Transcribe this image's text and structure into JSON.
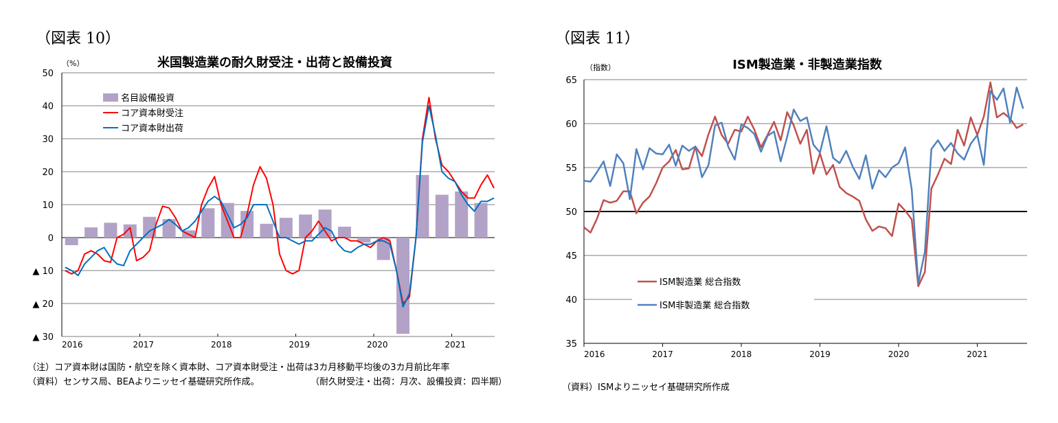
{
  "figures": {
    "left_label": "（図表 10）",
    "right_label": "（図表 11）"
  },
  "notes": {
    "left_note": "（注）コア資本財は国防・航空を除く資本財、コア資本財受注・出荷は3カ月移動平均後の3カ月前比年率",
    "left_source": "（資料）センサス局、BEAよりニッセイ基礎研究所作成。",
    "left_frequency": "（耐久財受注・出荷：月次、設備投資：四半期）",
    "right_source": "（資料）ISMよりニッセイ基礎研究所作成"
  },
  "colors": {
    "bar": "#b3a2c7",
    "orders": "#ff0000",
    "shipments": "#0070c0",
    "ism_manufacturing": "#c0504d",
    "ism_nonmanufacturing": "#4f81bd",
    "grid": "#7f7f7f"
  },
  "chart_data": [
    {
      "type": "bar+line",
      "title": "米国製造業の耐久財受注・出荷と設備投資",
      "unit": "（%）",
      "ylim": [
        -30,
        50
      ],
      "yticks": [
        {
          "value": 50,
          "label": "50"
        },
        {
          "value": 40,
          "label": "40"
        },
        {
          "value": 30,
          "label": "30"
        },
        {
          "value": 20,
          "label": "20"
        },
        {
          "value": 10,
          "label": "10"
        },
        {
          "value": 0,
          "label": "0"
        },
        {
          "value": -10,
          "label": "▲ 10"
        },
        {
          "value": -20,
          "label": "▲ 20"
        },
        {
          "value": -30,
          "label": "▲ 30"
        }
      ],
      "xticks": [
        "2016",
        "2017",
        "2018",
        "2019",
        "2020",
        "2021"
      ],
      "grid": true,
      "legend_position": "top-left",
      "series": [
        {
          "name": "名目設備投資",
          "kind": "bar",
          "frequency": "quarterly",
          "x": [
            "2016Q1",
            "2016Q2",
            "2016Q3",
            "2016Q4",
            "2017Q1",
            "2017Q2",
            "2017Q3",
            "2017Q4",
            "2018Q1",
            "2018Q2",
            "2018Q3",
            "2018Q4",
            "2019Q1",
            "2019Q2",
            "2019Q3",
            "2019Q4",
            "2020Q1",
            "2020Q2",
            "2020Q3",
            "2020Q4",
            "2021Q1",
            "2021Q2"
          ],
          "values": [
            -2.3,
            3.1,
            4.5,
            4.0,
            6.3,
            5.6,
            2.2,
            8.9,
            10.5,
            8.1,
            4.2,
            6.0,
            7.0,
            8.5,
            3.3,
            -1.5,
            -6.8,
            -29.2,
            19.0,
            13.0,
            14.0,
            10.5
          ]
        },
        {
          "name": "コア資本財受注",
          "kind": "line",
          "frequency": "monthly",
          "start": "2016-01",
          "values": [
            -10,
            -11,
            -10,
            -5,
            -4,
            -5,
            -7,
            -7.5,
            0,
            1,
            3,
            -7,
            -6,
            -4,
            4,
            9.5,
            9,
            6,
            2,
            1,
            0,
            10,
            15,
            18.5,
            10,
            5,
            0,
            0,
            7,
            16,
            21.5,
            18,
            10,
            -5,
            -10,
            -11,
            -10,
            0,
            2,
            5,
            2,
            -1,
            0,
            0,
            -1,
            -1,
            -2,
            -3,
            -1,
            0,
            -1,
            -10,
            -20,
            -18,
            0,
            30,
            42.5,
            30,
            22,
            20,
            17,
            14,
            12,
            12,
            16,
            19,
            15
          ]
        },
        {
          "name": "コア資本財出荷",
          "kind": "line",
          "frequency": "monthly",
          "start": "2016-01",
          "values": [
            -9,
            -10,
            -11.5,
            -8,
            -6,
            -4,
            -3,
            -6,
            -8,
            -8.5,
            -4,
            -2,
            0,
            2,
            3,
            4,
            5.5,
            4,
            2,
            3,
            5,
            8,
            11,
            12.5,
            11,
            7,
            3,
            4,
            6,
            10,
            10,
            10,
            5,
            0,
            0,
            -1,
            -2,
            -1,
            -1,
            1,
            3,
            2,
            -2,
            -4,
            -4.5,
            -3,
            -2,
            -2,
            -1,
            -1,
            -2,
            -10,
            -21,
            -17,
            0,
            29,
            40,
            31,
            20,
            18,
            17,
            13,
            10,
            8,
            11,
            11,
            12
          ]
        }
      ]
    },
    {
      "type": "line",
      "title": "ISM製造業・非製造業指数",
      "unit": "（指数）",
      "ylim": [
        35,
        65
      ],
      "yticks": [
        {
          "value": 65,
          "label": "65"
        },
        {
          "value": 60,
          "label": "60"
        },
        {
          "value": 55,
          "label": "55"
        },
        {
          "value": 50,
          "label": "50"
        },
        {
          "value": 45,
          "label": "45"
        },
        {
          "value": 40,
          "label": "40"
        },
        {
          "value": 35,
          "label": "35"
        }
      ],
      "xticks": [
        "2016",
        "2017",
        "2018",
        "2019",
        "2020",
        "2021"
      ],
      "reference_line": 50,
      "grid": true,
      "legend_position": "bottom-left",
      "series": [
        {
          "name": "ISM製造業 総合指数",
          "frequency": "monthly",
          "start": "2016-01",
          "values": [
            48.2,
            47.6,
            49.2,
            51.3,
            51.0,
            51.2,
            52.3,
            52.3,
            49.8,
            51.0,
            51.7,
            53.2,
            55.0,
            55.7,
            57.0,
            54.8,
            54.9,
            57.4,
            56.3,
            58.8,
            60.8,
            58.7,
            57.7,
            59.3,
            59.1,
            60.8,
            59.3,
            57.3,
            58.7,
            60.2,
            58.1,
            61.3,
            59.8,
            57.7,
            59.3,
            54.3,
            56.6,
            54.2,
            55.3,
            52.8,
            52.1,
            51.7,
            51.2,
            49.1,
            47.8,
            48.3,
            48.1,
            47.2,
            50.9,
            50.1,
            49.1,
            41.5,
            43.1,
            52.6,
            54.2,
            56.0,
            55.4,
            59.3,
            57.5,
            60.7,
            58.7,
            60.8,
            64.7,
            60.7,
            61.2,
            60.6,
            59.5,
            59.9
          ]
        },
        {
          "name": "ISM非製造業 総合指数",
          "frequency": "monthly",
          "start": "2016-01",
          "values": [
            53.5,
            53.4,
            54.5,
            55.7,
            52.9,
            56.5,
            55.5,
            51.4,
            57.1,
            54.8,
            57.2,
            56.6,
            56.5,
            57.6,
            55.2,
            57.5,
            56.9,
            57.4,
            53.9,
            55.3,
            59.8,
            60.1,
            57.4,
            55.9,
            59.9,
            59.5,
            58.8,
            56.8,
            58.6,
            59.1,
            55.7,
            58.5,
            61.6,
            60.3,
            60.7,
            57.6,
            56.7,
            59.7,
            56.1,
            55.5,
            56.9,
            55.1,
            53.7,
            56.4,
            52.6,
            54.7,
            53.9,
            55.0,
            55.5,
            57.3,
            52.5,
            41.8,
            45.4,
            57.1,
            58.1,
            56.9,
            57.8,
            56.6,
            55.9,
            57.7,
            58.7,
            55.3,
            63.7,
            62.7,
            64.0,
            60.1,
            64.1,
            61.7
          ]
        }
      ]
    }
  ]
}
